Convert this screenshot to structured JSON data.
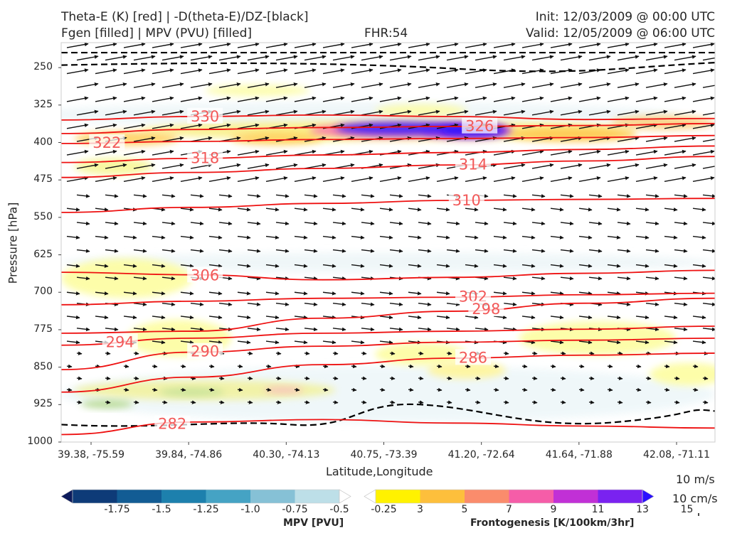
{
  "header": {
    "title_line1": "Theta-E (K) [red] | -D(theta-E)/DZ-[black]",
    "title_line2": "Fgen [filled] | MPV (PVU) [filled]",
    "fhr": "FHR:54",
    "init": "Init: 12/03/2009 @ 00:00 UTC",
    "valid": "Valid: 12/05/2009 @ 06:00 UTC"
  },
  "chart_data": {
    "type": "cross-section",
    "xlabel": "Latitude,Longitude",
    "ylabel": "Pressure [hPa]",
    "x_ticks": [
      "39.38, -75.59",
      "39.84, -74.86",
      "40.30, -74.13",
      "40.75, -73.39",
      "41.20, -72.64",
      "41.64, -71.88",
      "42.08, -71.11"
    ],
    "y_ticks": [
      250,
      325,
      400,
      475,
      550,
      625,
      700,
      775,
      850,
      925,
      1000
    ],
    "ylim": [
      200,
      1000
    ],
    "theta_e_contours": [
      {
        "label": "330",
        "x_frac": [
          0,
          0.2,
          0.4,
          0.6,
          0.8,
          1
        ],
        "p": [
          355,
          348,
          345,
          348,
          354,
          352
        ]
      },
      {
        "label": "326",
        "x_frac": [
          0,
          0.2,
          0.4,
          0.6,
          0.8,
          1
        ],
        "p": [
          382,
          374,
          370,
          368,
          366,
          362
        ]
      },
      {
        "label": "322",
        "x_frac": [
          0,
          0.2,
          0.4,
          0.6,
          0.8,
          1
        ],
        "p": [
          402,
          398,
          394,
          392,
          390,
          386
        ]
      },
      {
        "label": "318",
        "x_frac": [
          0,
          0.2,
          0.4,
          0.6,
          0.8,
          1
        ],
        "p": [
          440,
          432,
          425,
          420,
          414,
          407
        ]
      },
      {
        "label": "314",
        "x_frac": [
          0,
          0.2,
          0.4,
          0.6,
          0.8,
          1
        ],
        "p": [
          470,
          460,
          452,
          445,
          437,
          428
        ]
      },
      {
        "label": "310",
        "x_frac": [
          0,
          0.2,
          0.4,
          0.6,
          0.8,
          1
        ],
        "p": [
          540,
          530,
          522,
          516,
          514,
          512
        ]
      },
      {
        "label": "306",
        "x_frac": [
          0,
          0.2,
          0.4,
          0.6,
          0.8,
          1
        ],
        "p": [
          660,
          665,
          675,
          670,
          662,
          656
        ]
      },
      {
        "label": "302",
        "x_frac": [
          0,
          0.2,
          0.4,
          0.6,
          0.8,
          1
        ],
        "p": [
          725,
          718,
          712,
          710,
          705,
          702
        ]
      },
      {
        "label": "298",
        "x_frac": [
          0,
          0.2,
          0.4,
          0.6,
          0.8,
          1
        ],
        "p": [
          782,
          778,
          752,
          738,
          722,
          712
        ]
      },
      {
        "label": "294",
        "x_frac": [
          0,
          0.2,
          0.4,
          0.6,
          0.8,
          1
        ],
        "p": [
          806,
          792,
          782,
          778,
          774,
          768
        ]
      },
      {
        "label": "290",
        "x_frac": [
          0,
          0.2,
          0.4,
          0.6,
          0.8,
          1
        ],
        "p": [
          855,
          820,
          808,
          800,
          796,
          792
        ]
      },
      {
        "label": "286",
        "x_frac": [
          0,
          0.2,
          0.4,
          0.6,
          0.8,
          1
        ],
        "p": [
          900,
          870,
          845,
          832,
          826,
          822
        ]
      },
      {
        "label": "282",
        "x_frac": [
          0,
          0.2,
          0.4,
          0.6,
          0.8,
          1
        ],
        "p": [
          985,
          960,
          955,
          962,
          968,
          972
        ]
      }
    ],
    "colorbars": [
      {
        "title": "MPV [PVU]",
        "labels": [
          "-1.75",
          "-1.5",
          "-1.25",
          "-1.0",
          "-0.75",
          "-0.5",
          "-0.25"
        ],
        "colors": [
          "#0c1b5c",
          "#0e3b78",
          "#125c94",
          "#1d80ad",
          "#45a3c4",
          "#86c1d6",
          "#bddfe8",
          "#ffffff"
        ]
      },
      {
        "title": "Frontogenesis [K/100km/3hr]",
        "labels": [
          "3",
          "5",
          "7",
          "9",
          "11",
          "13",
          "15"
        ],
        "colors": [
          "#ffffff",
          "#fff200",
          "#fdbf3c",
          "#fa8c6c",
          "#f55da8",
          "#c130d6",
          "#7a22f0",
          "#2a10ff"
        ]
      }
    ],
    "reference_vectors": [
      "10 m/s",
      "10 cm/s"
    ]
  }
}
